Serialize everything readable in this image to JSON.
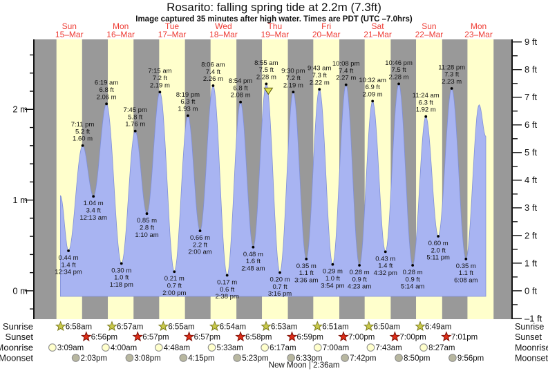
{
  "header": {
    "title": "Rosarito: falling  spring tide at 2.2m (7.3ft)",
    "subtitle": "Image captured 35 minutes after high water. Times are PDT (UTC –7.0hrs)"
  },
  "colors": {
    "night_band": "#999999",
    "day_band": "#ffffcc",
    "tide_fill": "#a8b4f2",
    "tide_stroke": "#8090d8",
    "date_label_red": "#ee3b33",
    "axis_black": "#111111",
    "sunrise_star_fill": "#c9c94a",
    "sunrise_star_stroke": "#7d7d22",
    "sunset_star_fill": "#dd2d18",
    "sunset_star_stroke": "#7d1208",
    "moonrise_fill": "#ffffcc",
    "moonset_fill": "#b8b7a0",
    "moon_stroke": "#888888",
    "marker_fill": "#e2e24e",
    "marker_stroke": "#55550a"
  },
  "chart_data": {
    "type": "area",
    "title": "Rosarito: falling  spring tide at 2.2m (7.3ft)",
    "days": [
      {
        "weekday": "Sun",
        "date": "15–Mar"
      },
      {
        "weekday": "Mon",
        "date": "16–Mar"
      },
      {
        "weekday": "Tue",
        "date": "17–Mar"
      },
      {
        "weekday": "Wed",
        "date": "18–Mar"
      },
      {
        "weekday": "Thu",
        "date": "19–Mar"
      },
      {
        "weekday": "Fri",
        "date": "20–Mar"
      },
      {
        "weekday": "Sat",
        "date": "21–Mar"
      },
      {
        "weekday": "Sun",
        "date": "22–Mar"
      },
      {
        "weekday": "Mon",
        "date": "23–Mar"
      }
    ],
    "y_left_major": [
      {
        "v": 0,
        "label": "0 m"
      },
      {
        "v": 1,
        "label": "1 m"
      },
      {
        "v": 2,
        "label": "2 m"
      }
    ],
    "y_right_major": [
      {
        "v": -1,
        "label": "–1 ft"
      },
      {
        "v": 0,
        "label": "0 ft"
      },
      {
        "v": 1,
        "label": "1 ft"
      },
      {
        "v": 2,
        "label": "2 ft"
      },
      {
        "v": 3,
        "label": "3 ft"
      },
      {
        "v": 4,
        "label": "4 ft"
      },
      {
        "v": 5,
        "label": "5 ft"
      },
      {
        "v": 6,
        "label": "6 ft"
      },
      {
        "v": 7,
        "label": "7 ft"
      },
      {
        "v": 8,
        "label": "8 ft"
      },
      {
        "v": 9,
        "label": "9 ft"
      }
    ],
    "ylim_ft": [
      -1,
      9
    ],
    "extremes": [
      {
        "day": 0,
        "time": "12:34 pm",
        "m": 0.44,
        "ft": 1.4,
        "type": "low"
      },
      {
        "day": 0,
        "time": "7:11 pm",
        "m": 1.6,
        "ft": 5.2,
        "type": "high"
      },
      {
        "day": 1,
        "time": "12:13 am",
        "m": 1.04,
        "ft": 3.4,
        "type": "low"
      },
      {
        "day": 1,
        "time": "6:19 am",
        "m": 2.06,
        "ft": 6.8,
        "type": "high"
      },
      {
        "day": 1,
        "time": "1:18 pm",
        "m": 0.3,
        "ft": 1.0,
        "type": "low"
      },
      {
        "day": 1,
        "time": "7:45 pm",
        "m": 1.76,
        "ft": 5.8,
        "type": "high"
      },
      {
        "day": 2,
        "time": "1:10 am",
        "m": 0.85,
        "ft": 2.8,
        "type": "low"
      },
      {
        "day": 2,
        "time": "7:15 am",
        "m": 2.19,
        "ft": 7.2,
        "type": "high"
      },
      {
        "day": 2,
        "time": "2:00 pm",
        "m": 0.21,
        "ft": 0.7,
        "type": "low"
      },
      {
        "day": 2,
        "time": "8:19 pm",
        "m": 1.93,
        "ft": 6.3,
        "type": "high"
      },
      {
        "day": 3,
        "time": "2:00 am",
        "m": 0.66,
        "ft": 2.2,
        "type": "low"
      },
      {
        "day": 3,
        "time": "8:06 am",
        "m": 2.26,
        "ft": 7.4,
        "type": "high"
      },
      {
        "day": 3,
        "time": "2:38 pm",
        "m": 0.17,
        "ft": 0.6,
        "type": "low"
      },
      {
        "day": 3,
        "time": "8:54 pm",
        "m": 2.08,
        "ft": 6.8,
        "type": "high"
      },
      {
        "day": 4,
        "time": "2:48 am",
        "m": 0.48,
        "ft": 1.6,
        "type": "low"
      },
      {
        "day": 4,
        "time": "8:55 am",
        "m": 2.28,
        "ft": 7.5,
        "type": "high",
        "current": true
      },
      {
        "day": 4,
        "time": "3:16 pm",
        "m": 0.2,
        "ft": 0.7,
        "type": "low"
      },
      {
        "day": 4,
        "time": "9:30 pm",
        "m": 2.19,
        "ft": 7.2,
        "type": "high"
      },
      {
        "day": 5,
        "time": "3:36 am",
        "m": 0.35,
        "ft": 1.1,
        "type": "low"
      },
      {
        "day": 5,
        "time": "9:43 am",
        "m": 2.22,
        "ft": 7.3,
        "type": "high"
      },
      {
        "day": 5,
        "time": "3:54 pm",
        "m": 0.29,
        "ft": 1.0,
        "type": "low"
      },
      {
        "day": 5,
        "time": "10:08 pm",
        "m": 2.27,
        "ft": 7.4,
        "type": "high"
      },
      {
        "day": 6,
        "time": "4:23 am",
        "m": 0.28,
        "ft": 0.9,
        "type": "low"
      },
      {
        "day": 6,
        "time": "10:32 am",
        "m": 2.09,
        "ft": 6.9,
        "type": "high"
      },
      {
        "day": 6,
        "time": "4:32 pm",
        "m": 0.43,
        "ft": 1.4,
        "type": "low"
      },
      {
        "day": 6,
        "time": "10:46 pm",
        "m": 2.28,
        "ft": 7.5,
        "type": "high"
      },
      {
        "day": 7,
        "time": "5:14 am",
        "m": 0.28,
        "ft": 0.9,
        "type": "low"
      },
      {
        "day": 7,
        "time": "11:24 am",
        "m": 1.92,
        "ft": 6.3,
        "type": "high"
      },
      {
        "day": 7,
        "time": "5:11 pm",
        "m": 0.6,
        "ft": 2.0,
        "type": "low"
      },
      {
        "day": 7,
        "time": "11:28 pm",
        "m": 2.23,
        "ft": 7.3,
        "type": "high"
      },
      {
        "day": 8,
        "time": "6:08 am",
        "m": 0.35,
        "ft": 1.1,
        "type": "low"
      }
    ],
    "curve_clip": {
      "start_h": 8.8,
      "start_m": 1.05,
      "end_peak_h": 204.3,
      "end_peak_m": 2.05,
      "end_h": 207.4,
      "end_m": 1.7
    },
    "astro": {
      "sunrise": {
        "label": "Sunrise",
        "times": [
          "6:58am",
          "6:57am",
          "6:55am",
          "6:54am",
          "6:53am",
          "6:51am",
          "6:50am",
          "6:49am"
        ]
      },
      "sunset": {
        "label": "Sunset",
        "times": [
          "6:56pm",
          "6:57pm",
          "6:57pm",
          "6:58pm",
          "6:59pm",
          "7:00pm",
          "7:00pm",
          "7:01pm"
        ]
      },
      "moonrise": {
        "label": "Moonrise",
        "times": [
          "3:09am",
          "4:00am",
          "4:48am",
          "5:33am",
          "6:17am",
          "7:00am",
          "7:43am",
          "8:27am"
        ]
      },
      "moonset": {
        "label": "Moonset",
        "times": [
          "2:03pm",
          "3:08pm",
          "4:15pm",
          "5:23pm",
          "6:33pm",
          "7:42pm",
          "8:50pm",
          "9:56pm"
        ]
      }
    },
    "new_moon": {
      "day": 5,
      "time": "2:36am",
      "text": "New Moon | 2:36am"
    }
  }
}
